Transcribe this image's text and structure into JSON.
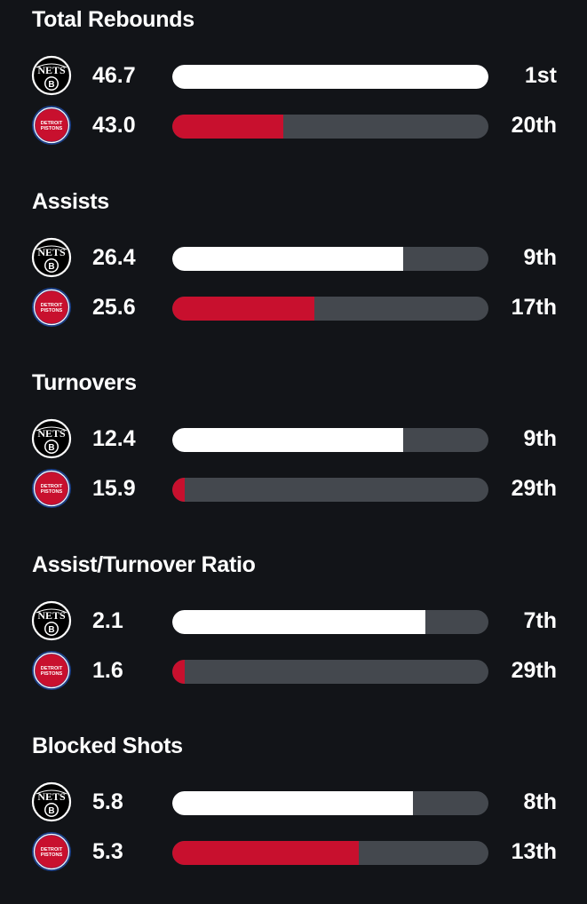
{
  "teams": {
    "nets": {
      "logo_text": "NETS",
      "icon": "nets-logo",
      "color": "#ffffff"
    },
    "pistons": {
      "logo_text": "DETROIT PISTONS",
      "icon": "pistons-logo",
      "color": "#c8102e"
    }
  },
  "stats": [
    {
      "title": "Total Rebounds",
      "nets": {
        "value": "46.7",
        "rank": "1st",
        "bar_fraction": 1.0
      },
      "pistons": {
        "value": "43.0",
        "rank": "20th",
        "bar_fraction": 0.35
      }
    },
    {
      "title": "Assists",
      "nets": {
        "value": "26.4",
        "rank": "9th",
        "bar_fraction": 0.73
      },
      "pistons": {
        "value": "25.6",
        "rank": "17th",
        "bar_fraction": 0.45
      }
    },
    {
      "title": "Turnovers",
      "nets": {
        "value": "12.4",
        "rank": "9th",
        "bar_fraction": 0.73
      },
      "pistons": {
        "value": "15.9",
        "rank": "29th",
        "bar_fraction": 0.04
      }
    },
    {
      "title": "Assist/Turnover Ratio",
      "nets": {
        "value": "2.1",
        "rank": "7th",
        "bar_fraction": 0.8
      },
      "pistons": {
        "value": "1.6",
        "rank": "29th",
        "bar_fraction": 0.04
      }
    },
    {
      "title": "Blocked Shots",
      "nets": {
        "value": "5.8",
        "rank": "8th",
        "bar_fraction": 0.76
      },
      "pistons": {
        "value": "5.3",
        "rank": "13th",
        "bar_fraction": 0.59
      }
    }
  ]
}
